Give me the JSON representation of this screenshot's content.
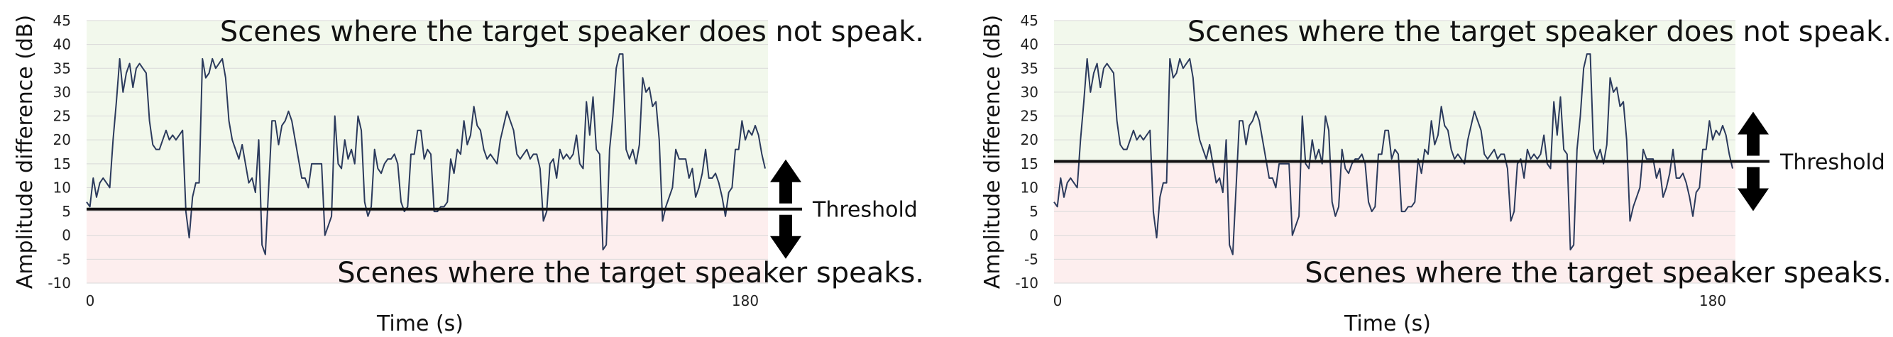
{
  "chart_data": [
    {
      "type": "line",
      "xlabel": "Time (s)",
      "ylabel": "Amplitude difference (dB)",
      "ylim": [
        -10,
        45
      ],
      "xlim": [
        0,
        180
      ],
      "y_ticks": [
        -10,
        -5,
        0,
        5,
        10,
        15,
        20,
        25,
        30,
        35,
        40,
        45
      ],
      "x_tick_labels": [
        "0",
        "180"
      ],
      "grid": true,
      "threshold": 5.5,
      "threshold_label": "Threshold",
      "annotation_top": "Scenes where the target speaker does not speak.",
      "annotation_bottom": "Scenes where the target speaker speaks.",
      "colors": {
        "line": "#2b3a5c",
        "above": "#f2f8ec",
        "below": "#fdeeee",
        "threshold": "#111111",
        "grid": "#d9d9d9"
      }
    },
    {
      "type": "line",
      "xlabel": "Time (s)",
      "ylabel": "Amplitude difference (dB)",
      "ylim": [
        -10,
        45
      ],
      "xlim": [
        0,
        180
      ],
      "y_ticks": [
        -10,
        -5,
        0,
        5,
        10,
        15,
        20,
        25,
        30,
        35,
        40,
        45
      ],
      "x_tick_labels": [
        "0",
        "180"
      ],
      "grid": true,
      "threshold": 15.5,
      "threshold_label": "Threshold",
      "annotation_top": "Scenes where the target speaker does not speak.",
      "annotation_bottom": "Scenes where the target speaker speaks.",
      "colors": {
        "line": "#2b3a5c",
        "above": "#f2f8ec",
        "below": "#fdeeee",
        "threshold": "#111111",
        "grid": "#d9d9d9"
      }
    }
  ],
  "series_values": [
    7,
    6,
    12,
    8,
    11,
    12,
    11,
    10,
    20,
    28,
    37,
    30,
    34,
    36,
    31,
    35,
    36,
    35,
    34,
    24,
    19,
    18,
    18,
    20,
    22,
    20,
    21,
    20,
    21,
    22,
    5,
    -0.5,
    8,
    11,
    11,
    37,
    33,
    34,
    37,
    35,
    36,
    37,
    33,
    24,
    20,
    18,
    16,
    19,
    15,
    11,
    12,
    9,
    20,
    -2,
    -4,
    10,
    24,
    24,
    19,
    23,
    24,
    26,
    24,
    20,
    16,
    12,
    12,
    10,
    15,
    15,
    15,
    15,
    0,
    2,
    4,
    25,
    15,
    14,
    20,
    16,
    18,
    15,
    25,
    22,
    7,
    4,
    6,
    18,
    14,
    13,
    15,
    16,
    16,
    17,
    15,
    7,
    5,
    6,
    17,
    17,
    22,
    22,
    16,
    18,
    17,
    5,
    5,
    6,
    6,
    7,
    16,
    13,
    18,
    17,
    24,
    19,
    21,
    27,
    23,
    22,
    18,
    16,
    17,
    16,
    15,
    20,
    23,
    26,
    24,
    22,
    17,
    16,
    17,
    18,
    16,
    17,
    17,
    14,
    3,
    5,
    15,
    16,
    12,
    18,
    16,
    17,
    16,
    17,
    21,
    15,
    14,
    28,
    21,
    29,
    18,
    17,
    -3,
    -2,
    18,
    25,
    35,
    38,
    38,
    18,
    16,
    18,
    15,
    19,
    33,
    30,
    31,
    27,
    28,
    20,
    3,
    6,
    8,
    10,
    18,
    16,
    16,
    16,
    12,
    14,
    8,
    10,
    13,
    18,
    12,
    12,
    13,
    11,
    8,
    4,
    9,
    10,
    18,
    18,
    24,
    20,
    22,
    21,
    23,
    21,
    17,
    14
  ]
}
